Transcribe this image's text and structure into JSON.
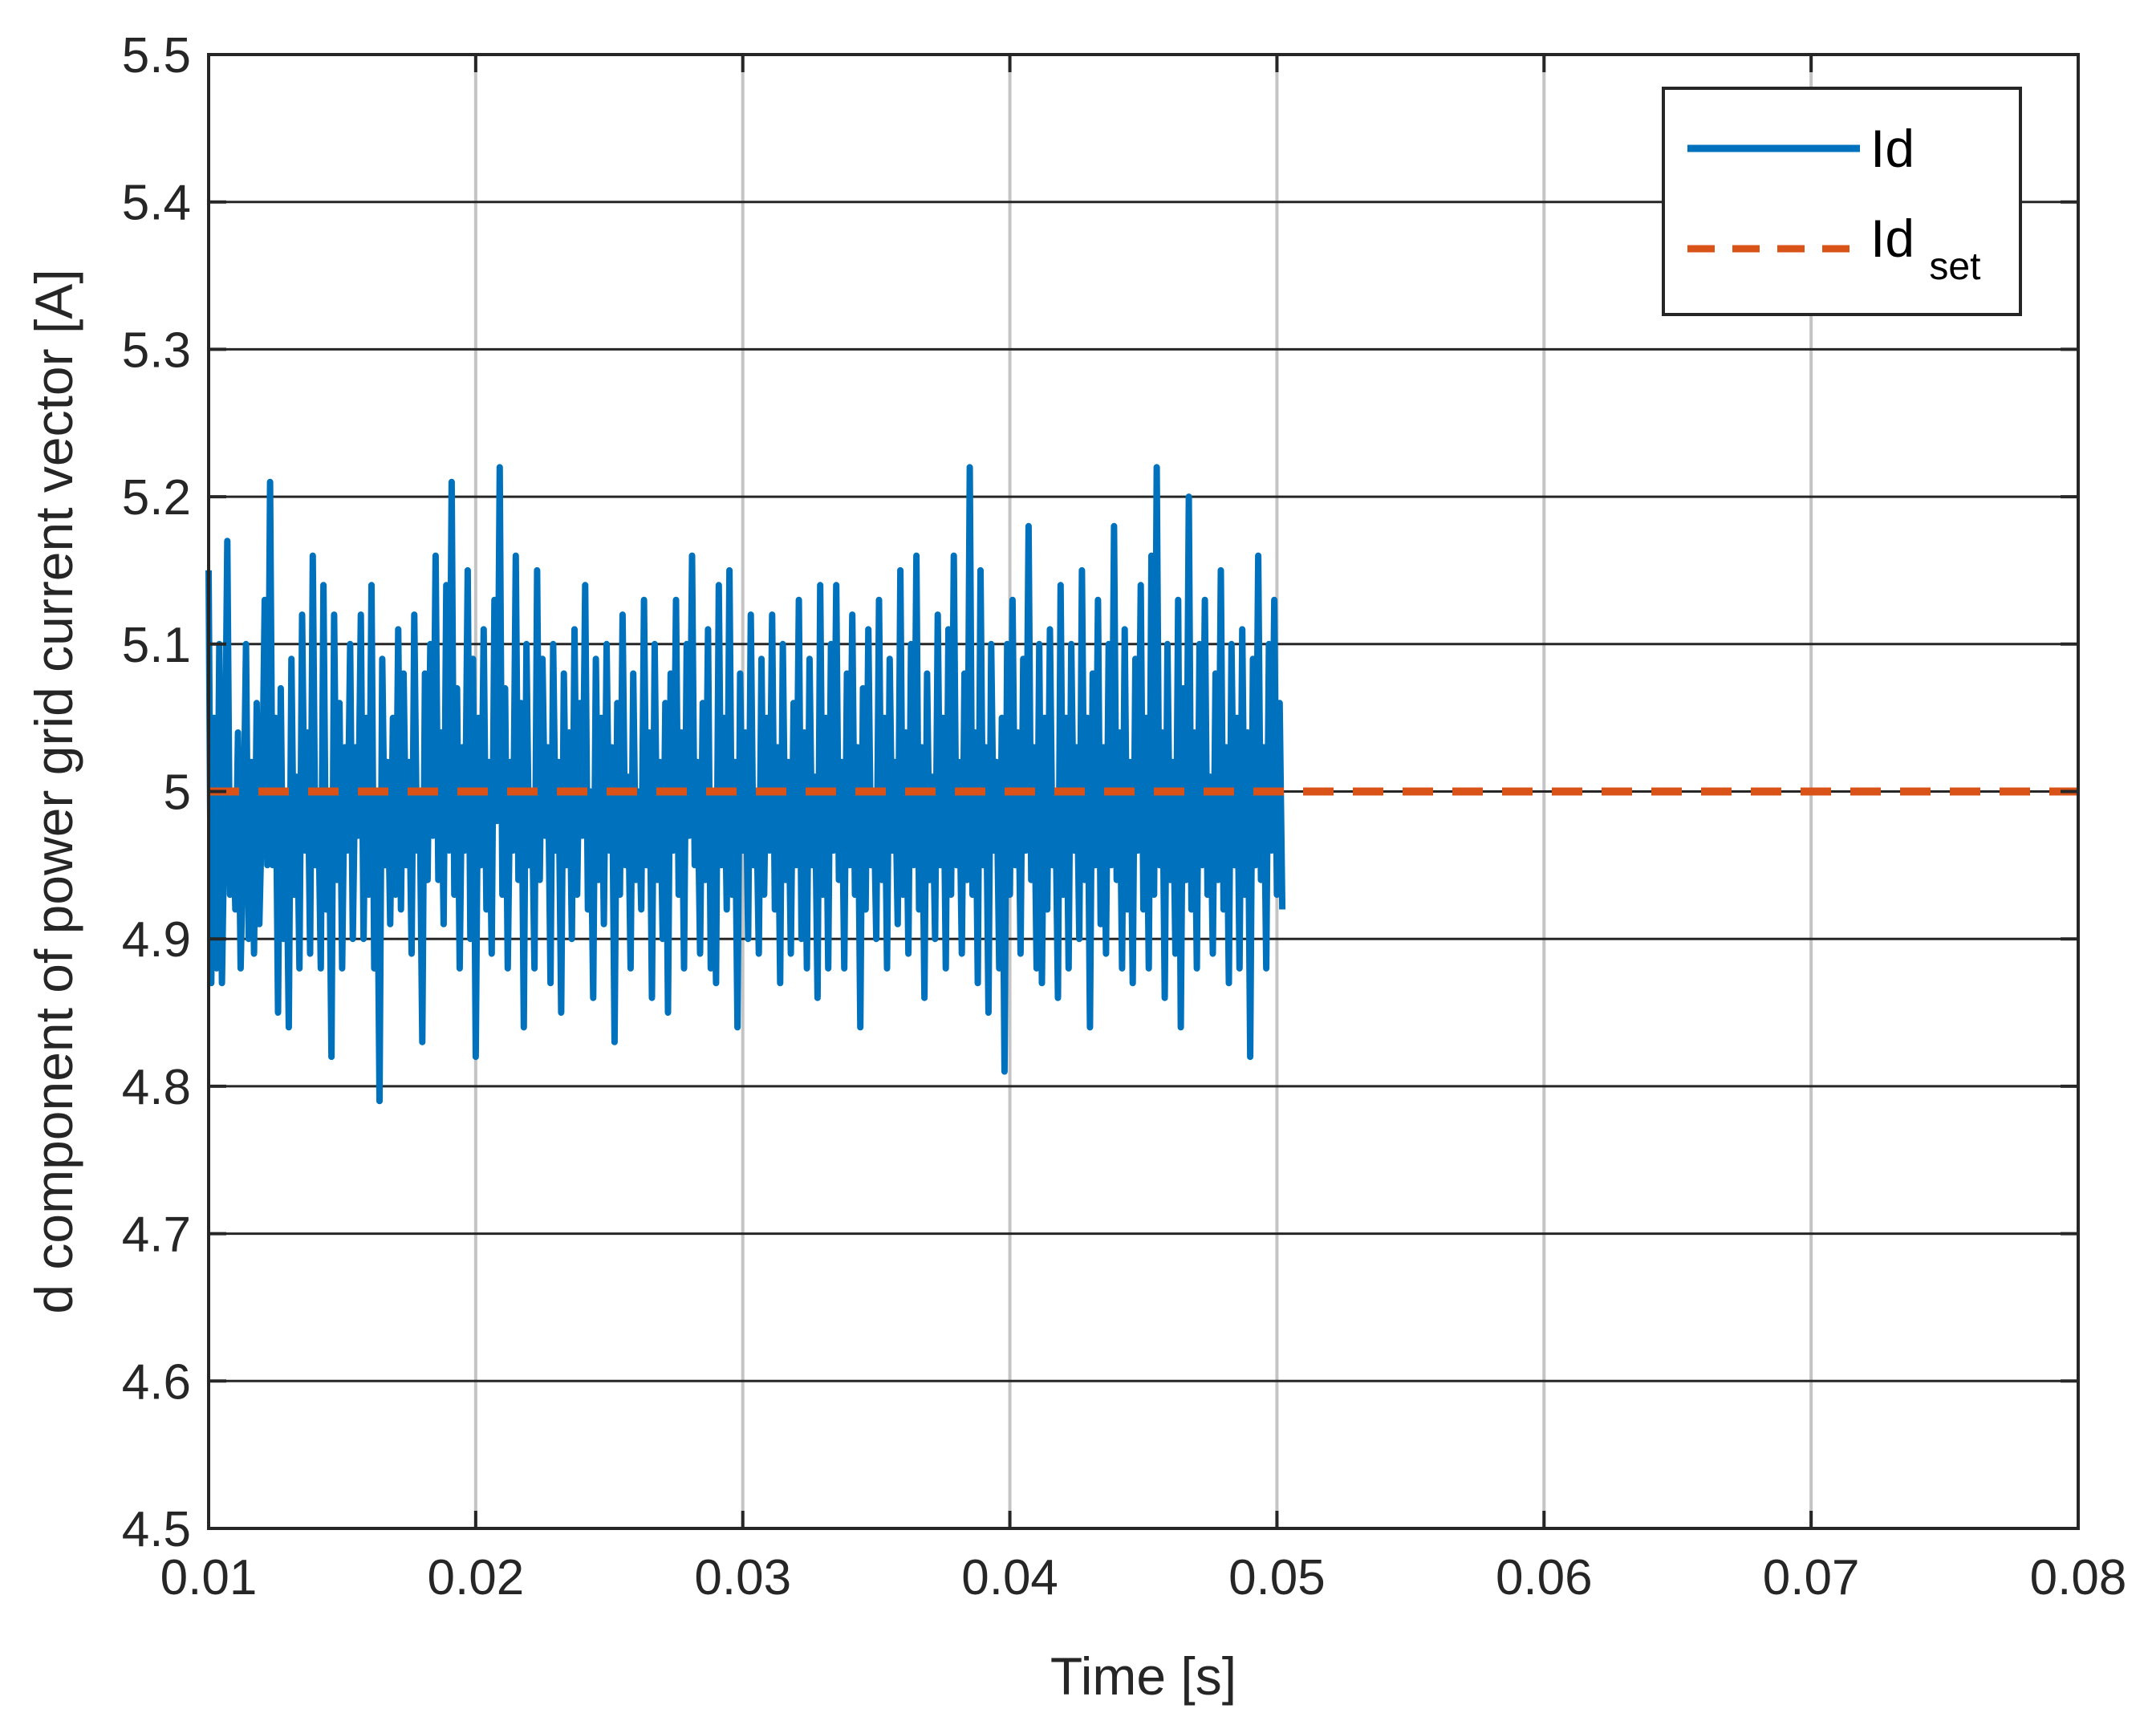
{
  "chart_data": {
    "type": "line",
    "xlabel": "Time [s]",
    "ylabel": "d component of power grid current vector [A]",
    "xlim": [
      0.01,
      0.08
    ],
    "ylim": [
      4.5,
      5.5
    ],
    "xticks": [
      "0.01",
      "0.02",
      "0.03",
      "0.04",
      "0.05",
      "0.06",
      "0.07",
      "0.08"
    ],
    "yticks": [
      "4.5",
      "4.6",
      "4.7",
      "4.8",
      "4.9",
      "5",
      "5.1",
      "5.2",
      "5.3",
      "5.4",
      "5.5"
    ],
    "grid": true,
    "legend_position": "top-right",
    "series": [
      {
        "name": "Id",
        "style": "solid",
        "color": "#0072BD",
        "x_start": 0.01,
        "x_step": 0.0001,
        "values": [
          5.15,
          4.87,
          5.05,
          4.88,
          5.1,
          4.87,
          4.99,
          5.17,
          4.93,
          5.0,
          4.92,
          5.04,
          4.88,
          4.97,
          5.1,
          4.9,
          5.02,
          4.89,
          5.06,
          4.91,
          4.99,
          5.13,
          4.95,
          5.21,
          4.95,
          5.05,
          4.85,
          5.07,
          4.9,
          5.0,
          4.84,
          5.09,
          4.93,
          5.01,
          4.88,
          5.12,
          4.96,
          5.04,
          4.89,
          5.16,
          4.95,
          5.0,
          4.88,
          5.14,
          4.92,
          5.0,
          4.82,
          5.12,
          4.94,
          5.06,
          4.88,
          5.03,
          4.96,
          5.1,
          4.9,
          5.03,
          4.97,
          5.12,
          4.9,
          5.05,
          4.93,
          5.14,
          4.88,
          5.0,
          4.79,
          5.09,
          4.95,
          5.02,
          4.91,
          5.05,
          4.93,
          5.11,
          4.92,
          5.08,
          4.95,
          5.02,
          4.89,
          5.12,
          4.96,
          5.0,
          4.83,
          5.08,
          4.94,
          5.1,
          4.97,
          5.16,
          4.94,
          5.04,
          4.91,
          5.14,
          4.96,
          5.21,
          4.93,
          5.07,
          4.88,
          5.03,
          4.96,
          5.15,
          4.9,
          5.09,
          4.82,
          5.05,
          4.95,
          5.11,
          4.92,
          5.02,
          4.89,
          5.13,
          4.98,
          5.22,
          4.93,
          5.07,
          4.88,
          5.02,
          4.96,
          5.16,
          4.94,
          5.06,
          4.84,
          5.1,
          4.95,
          5.0,
          4.88,
          5.15,
          4.94,
          5.09,
          4.97,
          5.03,
          4.87,
          5.1,
          4.96,
          5.02,
          4.85,
          5.08,
          4.95,
          5.04,
          4.9,
          5.11,
          4.93,
          5.06,
          4.97,
          5.14,
          4.92,
          5.0,
          4.86,
          5.09,
          4.94,
          5.05,
          4.91,
          5.1,
          4.96,
          5.03,
          4.83,
          5.06,
          4.93,
          5.12,
          4.95,
          5.01,
          4.88,
          5.08,
          4.94,
          5.0,
          4.92,
          5.13,
          4.95,
          5.04,
          4.86,
          5.1,
          4.94,
          5.02,
          4.9,
          5.06,
          4.85,
          5.08,
          4.96,
          5.13,
          4.93,
          5.04,
          4.88,
          5.1,
          4.97,
          5.16,
          4.95,
          5.02,
          4.89,
          5.06,
          4.94,
          5.11,
          4.88,
          5.0,
          4.87,
          5.14,
          4.95,
          5.05,
          4.92,
          5.15,
          4.93,
          5.02,
          4.84,
          5.08,
          4.96,
          5.04,
          4.9,
          5.12,
          4.95,
          5.0,
          4.89,
          5.09,
          4.93,
          5.05,
          4.96,
          5.12,
          4.92,
          5.03,
          4.87,
          5.1,
          4.94,
          5.02,
          4.89,
          5.06,
          4.95,
          5.13,
          4.9,
          5.04,
          4.88,
          5.09,
          4.95,
          5.01,
          4.86,
          5.14,
          4.93,
          5.05,
          4.88,
          5.1,
          4.96,
          5.14,
          4.94,
          5.02,
          4.88,
          5.08,
          4.95,
          5.12,
          4.93,
          5.03,
          4.84,
          5.07,
          4.92,
          5.11,
          4.95,
          5.0,
          4.9,
          5.13,
          4.94,
          5.05,
          4.88,
          5.09,
          4.96,
          5.02,
          4.91,
          5.15,
          4.93,
          5.04,
          4.89,
          5.1,
          4.95,
          5.16,
          4.92,
          5.03,
          4.86,
          5.08,
          4.94,
          5.01,
          4.9,
          5.12,
          4.95,
          5.05,
          4.88,
          5.11,
          4.93,
          5.16,
          4.95,
          5.02,
          4.89,
          5.08,
          4.94,
          5.22,
          4.93,
          5.04,
          4.87,
          5.15,
          4.95,
          5.03,
          4.85,
          5.1,
          4.96,
          5.02,
          4.88,
          5.05,
          4.81,
          5.1,
          4.93,
          5.13,
          4.95,
          5.04,
          4.89,
          5.09,
          4.96,
          5.18,
          4.94,
          5.03,
          4.88,
          5.1,
          4.87,
          5.05,
          4.92,
          5.11,
          4.95,
          5.0,
          4.86,
          5.14,
          4.93,
          5.05,
          4.88,
          5.1,
          4.96,
          5.03,
          4.9,
          5.15,
          4.94,
          5.05,
          4.84,
          5.08,
          4.95,
          5.13,
          4.91,
          5.03,
          4.89,
          5.1,
          4.95,
          5.18,
          4.94,
          5.04,
          4.88,
          5.11,
          4.92,
          5.02,
          4.87,
          5.09,
          4.96,
          5.14,
          4.92,
          5.05,
          4.88,
          5.16,
          4.93,
          5.22,
          4.95,
          5.04,
          4.86,
          5.1,
          4.94,
          5.02,
          4.89,
          5.13,
          4.84,
          5.07,
          4.94,
          5.2,
          4.92,
          5.04,
          4.88,
          5.1,
          4.95,
          5.13,
          4.93,
          5.01,
          4.89,
          5.08,
          4.94,
          5.15,
          4.92,
          5.03,
          4.87,
          5.1,
          4.95,
          5.05,
          4.88,
          5.11,
          4.93,
          5.04,
          4.82,
          5.09,
          4.95,
          5.16,
          4.94,
          5.03,
          4.88,
          5.1,
          4.96,
          5.13,
          4.93,
          5.06,
          4.92
        ]
      },
      {
        "name": "Id_set",
        "style": "dashed",
        "color": "#D95319",
        "x": [
          0.01,
          0.08
        ],
        "values": [
          5.0,
          5.0
        ]
      }
    ],
    "legend": {
      "entries": [
        {
          "main": "Id",
          "sub": ""
        },
        {
          "main": "Id",
          "sub": "set"
        }
      ]
    }
  }
}
